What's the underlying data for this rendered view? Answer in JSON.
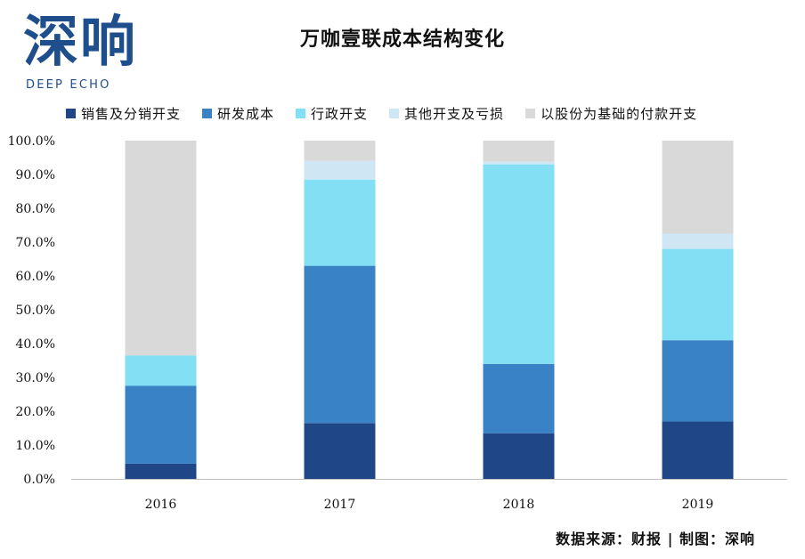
{
  "logo": {
    "cn": "深响",
    "en": "DEEP ECHO"
  },
  "title": "万咖壹联成本结构变化",
  "source": "数据来源：财报 | 制图：深响",
  "colors": {
    "brand": "#1f4e8c",
    "axis": "#bfbfbf"
  },
  "chart_data": {
    "type": "bar",
    "stacked": true,
    "title": "万咖壹联成本结构变化",
    "categories": [
      "2016",
      "2017",
      "2018",
      "2019"
    ],
    "ylim": [
      0,
      1
    ],
    "yticks": [
      "0.0%",
      "10.0%",
      "20.0%",
      "30.0%",
      "40.0%",
      "50.0%",
      "60.0%",
      "70.0%",
      "80.0%",
      "90.0%",
      "100.0%"
    ],
    "grid": false,
    "legend_position": "top",
    "series": [
      {
        "name": "销售及分销开支",
        "color": "#1f4788",
        "values": [
          0.045,
          0.165,
          0.135,
          0.17
        ]
      },
      {
        "name": "研发成本",
        "color": "#3a82c6",
        "values": [
          0.23,
          0.465,
          0.205,
          0.24
        ]
      },
      {
        "name": "行政开支",
        "color": "#83dff3",
        "values": [
          0.09,
          0.255,
          0.59,
          0.27
        ]
      },
      {
        "name": "其他开支及亏损",
        "color": "#cfe7f5",
        "values": [
          0.0,
          0.055,
          0.008,
          0.045
        ]
      },
      {
        "name": "以股份为基础的付款开支",
        "color": "#d9d9d9",
        "values": [
          0.635,
          0.06,
          0.062,
          0.275
        ]
      }
    ]
  }
}
